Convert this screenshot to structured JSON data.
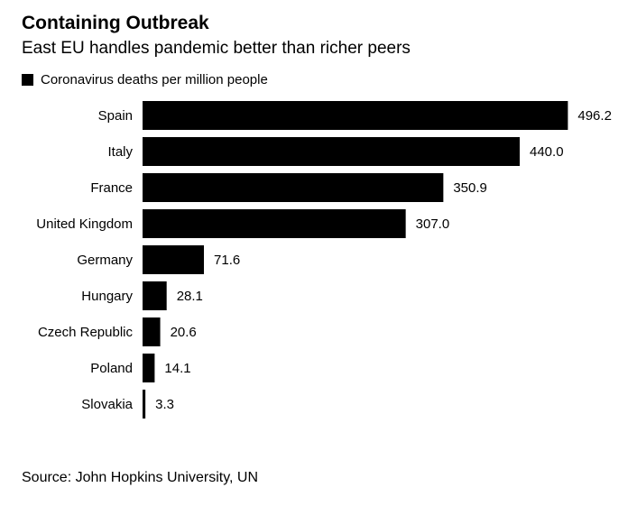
{
  "chart_data": {
    "type": "bar",
    "orientation": "horizontal",
    "title": "Containing Outbreak",
    "subtitle": "East EU handles pandemic better than richer peers",
    "legend": "Coronavirus deaths per million people",
    "categories": [
      "Spain",
      "Italy",
      "France",
      "United Kingdom",
      "Germany",
      "Hungary",
      "Czech Republic",
      "Poland",
      "Slovakia"
    ],
    "values": [
      496.2,
      440.0,
      350.9,
      307.0,
      71.6,
      28.1,
      20.6,
      14.1,
      3.3
    ],
    "value_labels": [
      "496.2",
      "440.0",
      "350.9",
      "307.0",
      "71.6",
      "28.1",
      "20.6",
      "14.1",
      "3.3"
    ],
    "bar_color": "#000000",
    "grid": false,
    "source": "Source: John Hopkins University, UN"
  }
}
